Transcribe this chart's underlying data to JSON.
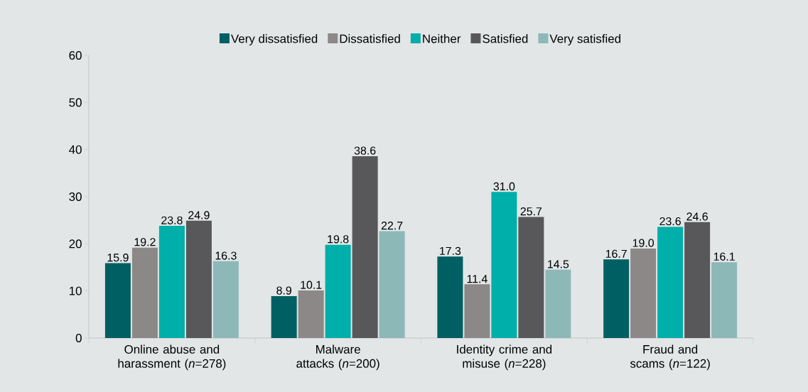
{
  "chart_data": {
    "type": "bar",
    "categories": [
      "Online abuse and harassment (*n*=278)",
      "Malware attacks (*n*=200)",
      "Identity crime and misuse (*n*=228)",
      "Fraud and scams (*n*=122)"
    ],
    "series": [
      {
        "name": "Very dissatisfied",
        "color": "#005f62",
        "values": [
          15.9,
          8.9,
          17.3,
          16.7
        ],
        "value_labels": [
          "15.9",
          "8.9",
          "17.3",
          "16.7"
        ]
      },
      {
        "name": "Dissatisfied",
        "color": "#8c8888",
        "values": [
          19.2,
          10.1,
          11.4,
          19.0
        ],
        "value_labels": [
          "19.2",
          "10.1",
          "11.4",
          "19.0"
        ]
      },
      {
        "name": "Neither",
        "color": "#00aeaa",
        "values": [
          23.8,
          19.8,
          31.0,
          23.6
        ],
        "value_labels": [
          "23.8",
          "19.8",
          "31.0",
          "23.6"
        ]
      },
      {
        "name": "Satisfied",
        "color": "#58585a",
        "values": [
          24.9,
          38.6,
          25.7,
          24.6
        ],
        "value_labels": [
          "24.9",
          "38.6",
          "25.7",
          "24.6"
        ]
      },
      {
        "name": "Very satisfied",
        "color": "#8cb8b8",
        "values": [
          16.3,
          22.7,
          14.5,
          16.1
        ],
        "value_labels": [
          "16.3",
          "22.7",
          "14.5",
          "16.1"
        ]
      }
    ],
    "ylim": [
      0,
      60
    ],
    "yticks": [
      0,
      10,
      20,
      30,
      40,
      50,
      60
    ],
    "legend": "top",
    "grid": false
  }
}
